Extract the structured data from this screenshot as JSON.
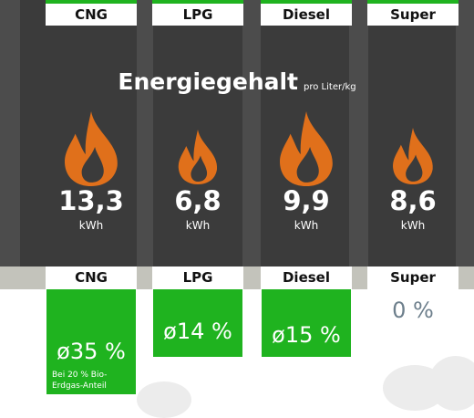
{
  "title": "Energiegehalt",
  "subtitle": "pro Liter/kg",
  "fuels": [
    {
      "name": "CNG",
      "energy": "13,3",
      "unit": "kWh",
      "share": "ø35 %",
      "note": "Bei 20 % Bio-Erdgas-Anteil"
    },
    {
      "name": "LPG",
      "energy": "6,8",
      "unit": "kWh",
      "share": "ø14 %"
    },
    {
      "name": "Diesel",
      "energy": "9,9",
      "unit": "kWh",
      "share": "ø15 %"
    },
    {
      "name": "Super",
      "energy": "8,6",
      "unit": "kWh",
      "share": "0 %"
    }
  ]
}
